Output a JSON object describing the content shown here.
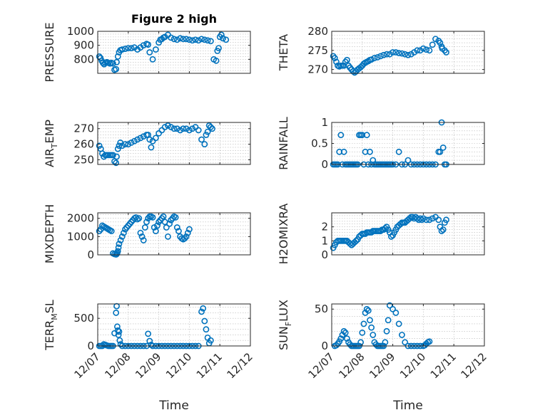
{
  "chart_data": [
    {
      "type": "scatter",
      "title": "Figure 2 high",
      "ylabel": {
        "main": "PRESSURE"
      },
      "ylim": [
        700,
        1000
      ],
      "yticks": [
        800,
        900,
        1000
      ],
      "xlim": [
        0,
        5
      ],
      "xticks": [
        0,
        1,
        2,
        3,
        4,
        5
      ],
      "xticklabels": [
        "12/07",
        "12/08",
        "12/09",
        "12/10",
        "12/11",
        "12/12"
      ],
      "xlabel": "",
      "grid": true,
      "color": "#0072BD",
      "x": [
        0.05,
        0.09,
        0.13,
        0.17,
        0.21,
        0.25,
        0.3,
        0.35,
        0.4,
        0.45,
        0.5,
        0.55,
        0.6,
        0.62,
        0.66,
        0.7,
        0.74,
        0.8,
        0.9,
        1.0,
        1.1,
        1.2,
        1.3,
        1.4,
        1.5,
        1.6,
        1.65,
        1.7,
        1.8,
        1.9,
        2.0,
        2.05,
        2.1,
        2.15,
        2.2,
        2.3,
        2.4,
        2.5,
        2.6,
        2.7,
        2.8,
        2.9,
        3.0,
        3.1,
        3.2,
        3.3,
        3.4,
        3.5,
        3.6,
        3.7,
        3.8,
        3.88,
        3.92,
        3.96,
        4.0,
        4.05,
        4.1,
        4.2
      ],
      "y": [
        820,
        810,
        790,
        775,
        765,
        775,
        780,
        775,
        770,
        775,
        770,
        725,
        730,
        780,
        820,
        850,
        865,
        870,
        875,
        880,
        880,
        885,
        870,
        885,
        900,
        910,
        905,
        850,
        800,
        870,
        920,
        940,
        945,
        955,
        960,
        975,
        955,
        945,
        940,
        950,
        945,
        945,
        940,
        935,
        940,
        935,
        945,
        940,
        935,
        930,
        800,
        790,
        860,
        880,
        960,
        975,
        950,
        940
      ]
    },
    {
      "type": "scatter",
      "title": "",
      "ylabel": {
        "main": "THETA"
      },
      "ylim": [
        269,
        280
      ],
      "yticks": [
        270,
        275,
        280
      ],
      "xlim": [
        0,
        5
      ],
      "xticks": [
        0,
        1,
        2,
        3,
        4,
        5
      ],
      "xticklabels": [
        "12/07",
        "12/08",
        "12/09",
        "12/10",
        "12/11",
        "12/12"
      ],
      "xlabel": "",
      "grid": true,
      "color": "#0072BD",
      "x": [
        0.05,
        0.1,
        0.15,
        0.2,
        0.25,
        0.3,
        0.35,
        0.4,
        0.45,
        0.5,
        0.55,
        0.6,
        0.65,
        0.7,
        0.75,
        0.8,
        0.85,
        0.9,
        0.95,
        1.0,
        1.05,
        1.1,
        1.15,
        1.2,
        1.25,
        1.3,
        1.4,
        1.5,
        1.6,
        1.7,
        1.8,
        1.9,
        2.0,
        2.1,
        2.2,
        2.3,
        2.4,
        2.5,
        2.6,
        2.7,
        2.8,
        2.9,
        3.0,
        3.1,
        3.2,
        3.3,
        3.4,
        3.5,
        3.55,
        3.6,
        3.62,
        3.7,
        3.75
      ],
      "y": [
        273.5,
        273,
        272,
        271,
        270.8,
        271,
        271,
        271,
        272,
        272.5,
        271,
        270.5,
        270,
        269.5,
        269.2,
        269.5,
        270,
        270.3,
        270.6,
        271,
        271.5,
        271.8,
        272,
        272.2,
        272.5,
        272.6,
        273,
        273.2,
        273.5,
        273.8,
        274,
        274,
        274.5,
        274.5,
        274.3,
        274.2,
        274,
        273.8,
        274,
        274.5,
        275,
        275,
        275.5,
        275.2,
        275,
        276.5,
        278,
        277.5,
        277,
        276,
        275.5,
        275,
        274.5
      ]
    },
    {
      "type": "scatter",
      "title": "",
      "ylabel": {
        "main": "AIR",
        "sub": "T",
        "rest": "EMP"
      },
      "ylim": [
        247,
        274
      ],
      "yticks": [
        250,
        260,
        270
      ],
      "xlim": [
        0,
        5
      ],
      "xticks": [
        0,
        1,
        2,
        3,
        4,
        5
      ],
      "xticklabels": [
        "12/07",
        "12/08",
        "12/09",
        "12/10",
        "12/11",
        "12/12"
      ],
      "xlabel": "",
      "grid": true,
      "color": "#0072BD",
      "x": [
        0.05,
        0.1,
        0.15,
        0.2,
        0.25,
        0.3,
        0.35,
        0.4,
        0.45,
        0.5,
        0.55,
        0.6,
        0.62,
        0.66,
        0.7,
        0.74,
        0.8,
        0.9,
        1.0,
        1.1,
        1.2,
        1.3,
        1.4,
        1.5,
        1.6,
        1.65,
        1.7,
        1.75,
        1.8,
        1.9,
        2.0,
        2.1,
        2.2,
        2.3,
        2.4,
        2.5,
        2.6,
        2.7,
        2.8,
        2.9,
        3.0,
        3.1,
        3.2,
        3.3,
        3.4,
        3.5,
        3.55,
        3.6,
        3.65,
        3.7,
        3.75
      ],
      "y": [
        259,
        257,
        254,
        252,
        253,
        253,
        253,
        253,
        253,
        253,
        249,
        248,
        252,
        257,
        259,
        261,
        259,
        260,
        260,
        261,
        262,
        263,
        264,
        265,
        266,
        266,
        263,
        258,
        262,
        264,
        267,
        269,
        271,
        272,
        271,
        270,
        270,
        269,
        270,
        270,
        269,
        270,
        271,
        269,
        263,
        260,
        266,
        268,
        272,
        271,
        270
      ]
    },
    {
      "type": "scatter",
      "title": "",
      "ylabel": {
        "main": "RAINFALL"
      },
      "ylim": [
        0,
        1
      ],
      "yticks": [
        0,
        0.5,
        1
      ],
      "xlim": [
        0,
        5
      ],
      "xticks": [
        0,
        1,
        2,
        3,
        4,
        5
      ],
      "xticklabels": [
        "12/07",
        "12/08",
        "12/09",
        "12/10",
        "12/11",
        "12/12"
      ],
      "xlabel": "",
      "grid": true,
      "color": "#0072BD",
      "x": [
        0.05,
        0.1,
        0.15,
        0.2,
        0.25,
        0.3,
        0.35,
        0.4,
        0.45,
        0.5,
        0.55,
        0.6,
        0.65,
        0.7,
        0.75,
        0.8,
        0.85,
        0.9,
        0.95,
        1.0,
        1.05,
        1.1,
        1.15,
        1.2,
        1.25,
        1.3,
        1.35,
        1.4,
        1.45,
        1.5,
        1.55,
        1.6,
        1.65,
        1.7,
        1.75,
        1.8,
        1.85,
        1.9,
        1.95,
        2.0,
        2.1,
        2.2,
        2.3,
        2.4,
        2.5,
        2.6,
        2.7,
        2.8,
        2.9,
        3.0,
        3.1,
        3.2,
        3.3,
        3.4,
        3.5,
        3.55,
        3.6,
        3.65,
        3.7,
        3.75
      ],
      "y": [
        0,
        0,
        0,
        0,
        0.3,
        0.7,
        0,
        0.3,
        0,
        0,
        0,
        0,
        0,
        0,
        0,
        0,
        0,
        0.7,
        0.7,
        0.7,
        0,
        0.3,
        0.7,
        0,
        0.3,
        0,
        0.1,
        0,
        0,
        0,
        0,
        0,
        0,
        0,
        0,
        0,
        0,
        0,
        0,
        0,
        0,
        0.3,
        0,
        0,
        0.1,
        0,
        0,
        0,
        0,
        0,
        0,
        0,
        0,
        0,
        0.3,
        0.3,
        1,
        0.4,
        0,
        0
      ]
    },
    {
      "type": "scatter",
      "title": "",
      "ylabel": {
        "main": "MIXDEPTH"
      },
      "ylim": [
        0,
        2300
      ],
      "yticks": [
        0,
        1000,
        2000
      ],
      "xlim": [
        0,
        5
      ],
      "xticks": [
        0,
        1,
        2,
        3,
        4,
        5
      ],
      "xticklabels": [
        "12/07",
        "12/08",
        "12/09",
        "12/10",
        "12/11",
        "12/12"
      ],
      "xlabel": "",
      "grid": true,
      "color": "#0072BD",
      "x": [
        0.05,
        0.1,
        0.15,
        0.2,
        0.25,
        0.3,
        0.35,
        0.4,
        0.45,
        0.5,
        0.55,
        0.6,
        0.62,
        0.64,
        0.66,
        0.68,
        0.7,
        0.75,
        0.8,
        0.85,
        0.9,
        0.95,
        1.0,
        1.05,
        1.1,
        1.15,
        1.2,
        1.25,
        1.3,
        1.35,
        1.4,
        1.45,
        1.5,
        1.55,
        1.6,
        1.65,
        1.7,
        1.75,
        1.8,
        1.85,
        1.9,
        1.95,
        2.0,
        2.05,
        2.1,
        2.15,
        2.2,
        2.25,
        2.3,
        2.35,
        2.4,
        2.45,
        2.5,
        2.55,
        2.6,
        2.65,
        2.7,
        2.75,
        2.8,
        2.85,
        2.9,
        2.95,
        3.0
      ],
      "y": [
        1300,
        1400,
        1600,
        1550,
        1500,
        1450,
        1400,
        1350,
        1300,
        80,
        40,
        20,
        40,
        100,
        200,
        400,
        600,
        800,
        1000,
        1200,
        1400,
        1500,
        1600,
        1700,
        1800,
        1900,
        2000,
        2050,
        1950,
        2000,
        1200,
        1000,
        800,
        1500,
        1800,
        2000,
        2100,
        2100,
        2050,
        1500,
        1300,
        1600,
        1800,
        1900,
        2000,
        2100,
        1800,
        1500,
        1000,
        1700,
        1900,
        2000,
        2100,
        2050,
        1500,
        1300,
        1000,
        900,
        850,
        900,
        1000,
        1200,
        1400
      ]
    },
    {
      "type": "scatter",
      "title": "",
      "ylabel": {
        "main": "H2OMIXRA"
      },
      "ylim": [
        0,
        3
      ],
      "yticks": [
        0,
        1,
        2
      ],
      "xlim": [
        0,
        5
      ],
      "xticks": [
        0,
        1,
        2,
        3,
        4,
        5
      ],
      "xticklabels": [
        "12/07",
        "12/08",
        "12/09",
        "12/10",
        "12/11",
        "12/12"
      ],
      "xlabel": "",
      "grid": true,
      "color": "#0072BD",
      "x": [
        0.05,
        0.1,
        0.15,
        0.2,
        0.25,
        0.3,
        0.35,
        0.4,
        0.45,
        0.5,
        0.55,
        0.6,
        0.65,
        0.7,
        0.75,
        0.8,
        0.85,
        0.9,
        0.95,
        1.0,
        1.05,
        1.1,
        1.15,
        1.2,
        1.25,
        1.3,
        1.35,
        1.4,
        1.45,
        1.5,
        1.55,
        1.6,
        1.65,
        1.7,
        1.75,
        1.8,
        1.85,
        1.9,
        1.95,
        2.0,
        2.05,
        2.1,
        2.15,
        2.2,
        2.25,
        2.3,
        2.35,
        2.4,
        2.45,
        2.5,
        2.55,
        2.6,
        2.65,
        2.7,
        2.75,
        2.8,
        2.85,
        2.9,
        2.95,
        3.0,
        3.1,
        3.2,
        3.3,
        3.4,
        3.5,
        3.55,
        3.6,
        3.65,
        3.7,
        3.75
      ],
      "y": [
        0.5,
        0.7,
        0.9,
        1,
        1,
        1,
        1,
        1,
        1,
        1,
        0.9,
        0.8,
        0.7,
        0.8,
        0.9,
        1,
        1.1,
        1.3,
        1.4,
        1.5,
        1.5,
        1.5,
        1.6,
        1.6,
        1.6,
        1.6,
        1.7,
        1.7,
        1.7,
        1.7,
        1.7,
        1.7,
        1.8,
        1.8,
        1.9,
        2.0,
        1.8,
        1.6,
        1.3,
        1.4,
        1.6,
        1.8,
        2.0,
        2.1,
        2.2,
        2.3,
        2.3,
        2.3,
        2.4,
        2.5,
        2.6,
        2.7,
        2.7,
        2.6,
        2.7,
        2.6,
        2.5,
        2.6,
        2.5,
        2.6,
        2.5,
        2.5,
        2.6,
        2.7,
        2.5,
        2.0,
        1.7,
        1.8,
        2.3,
        2.5
      ]
    },
    {
      "type": "scatter",
      "title": "",
      "ylabel": {
        "main": "TERR",
        "sub": "M",
        "rest": "SL"
      },
      "ylim": [
        0,
        760
      ],
      "yticks": [
        0,
        500
      ],
      "xlim": [
        0,
        5
      ],
      "xticks": [
        0,
        1,
        2,
        3,
        4,
        5
      ],
      "xticklabels": [
        "12/07",
        "12/08",
        "12/09",
        "12/10",
        "12/11",
        "12/12"
      ],
      "xlabel": "Time",
      "grid": true,
      "color": "#0072BD",
      "x": [
        0.05,
        0.1,
        0.15,
        0.2,
        0.25,
        0.3,
        0.35,
        0.4,
        0.45,
        0.5,
        0.55,
        0.6,
        0.62,
        0.64,
        0.66,
        0.68,
        0.7,
        0.72,
        0.75,
        0.8,
        0.9,
        1.0,
        1.1,
        1.2,
        1.3,
        1.4,
        1.5,
        1.6,
        1.65,
        1.7,
        1.75,
        1.8,
        1.9,
        2.0,
        2.1,
        2.2,
        2.3,
        2.4,
        2.5,
        2.6,
        2.7,
        2.8,
        2.9,
        3.0,
        3.1,
        3.2,
        3.3,
        3.4,
        3.45,
        3.5,
        3.55,
        3.6,
        3.65,
        3.7
      ],
      "y": [
        0,
        0,
        0,
        30,
        20,
        10,
        0,
        0,
        0,
        0,
        230,
        600,
        720,
        350,
        280,
        200,
        260,
        100,
        30,
        0,
        0,
        0,
        0,
        0,
        0,
        0,
        0,
        0,
        220,
        90,
        20,
        0,
        0,
        0,
        0,
        0,
        0,
        0,
        0,
        0,
        0,
        0,
        0,
        0,
        0,
        0,
        0,
        620,
        680,
        450,
        300,
        150,
        50,
        100
      ]
    },
    {
      "type": "scatter",
      "title": "",
      "ylabel": {
        "main": "SUN",
        "sub": "F",
        "rest": "LUX"
      },
      "ylim": [
        0,
        57
      ],
      "yticks": [
        0,
        50
      ],
      "xlim": [
        0,
        5
      ],
      "xticks": [
        0,
        1,
        2,
        3,
        4,
        5
      ],
      "xticklabels": [
        "12/07",
        "12/08",
        "12/09",
        "12/10",
        "12/11",
        "12/12"
      ],
      "xlabel": "Time",
      "grid": true,
      "color": "#0072BD",
      "x": [
        0.1,
        0.15,
        0.2,
        0.25,
        0.3,
        0.35,
        0.4,
        0.45,
        0.5,
        0.55,
        0.6,
        0.65,
        0.7,
        0.75,
        0.8,
        0.85,
        0.9,
        0.95,
        1.0,
        1.05,
        1.1,
        1.15,
        1.2,
        1.25,
        1.3,
        1.35,
        1.4,
        1.45,
        1.5,
        1.55,
        1.6,
        1.65,
        1.7,
        1.75,
        1.8,
        1.85,
        1.9,
        2.0,
        2.1,
        2.2,
        2.3,
        2.4,
        2.5,
        2.6,
        2.7,
        2.8,
        2.9,
        3.0,
        3.05,
        3.1,
        3.15,
        3.2
      ],
      "y": [
        0,
        1,
        3,
        6,
        10,
        15,
        20,
        18,
        10,
        5,
        2,
        0,
        0,
        0,
        0,
        0,
        0,
        5,
        18,
        30,
        45,
        50,
        48,
        35,
        25,
        15,
        5,
        2,
        0,
        0,
        0,
        0,
        0,
        5,
        20,
        35,
        55,
        50,
        45,
        30,
        15,
        5,
        0,
        0,
        0,
        0,
        0,
        0,
        1,
        3,
        5,
        6
      ]
    }
  ]
}
